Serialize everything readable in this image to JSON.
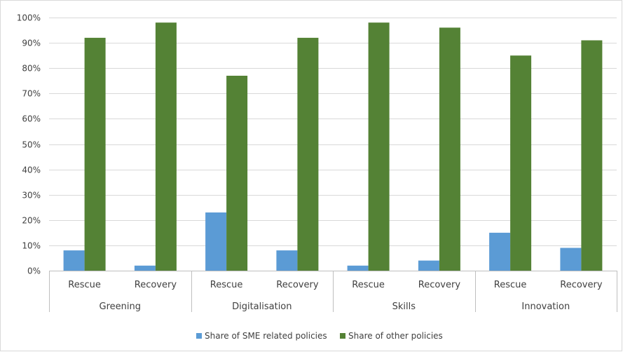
{
  "chart_data": {
    "type": "bar",
    "groups": [
      {
        "label": "Greening",
        "categories": [
          "Rescue",
          "Recovery"
        ]
      },
      {
        "label": "Digitalisation",
        "categories": [
          "Rescue",
          "Recovery"
        ]
      },
      {
        "label": "Skills",
        "categories": [
          "Rescue",
          "Recovery"
        ]
      },
      {
        "label": "Innovation",
        "categories": [
          "Rescue",
          "Recovery"
        ]
      }
    ],
    "series": [
      {
        "name": "Share of SME related policies",
        "color": "#5B9BD5",
        "values": [
          8,
          2,
          23,
          8,
          2,
          4,
          15,
          9
        ]
      },
      {
        "name": "Share of other policies",
        "color": "#548235",
        "values": [
          92,
          98,
          77,
          92,
          98,
          96,
          85,
          91
        ]
      }
    ],
    "ylim": [
      0,
      100
    ],
    "yticks": [
      "0%",
      "10%",
      "20%",
      "30%",
      "40%",
      "50%",
      "60%",
      "70%",
      "80%",
      "90%",
      "100%"
    ],
    "grid": true,
    "legend_position": "bottom"
  }
}
